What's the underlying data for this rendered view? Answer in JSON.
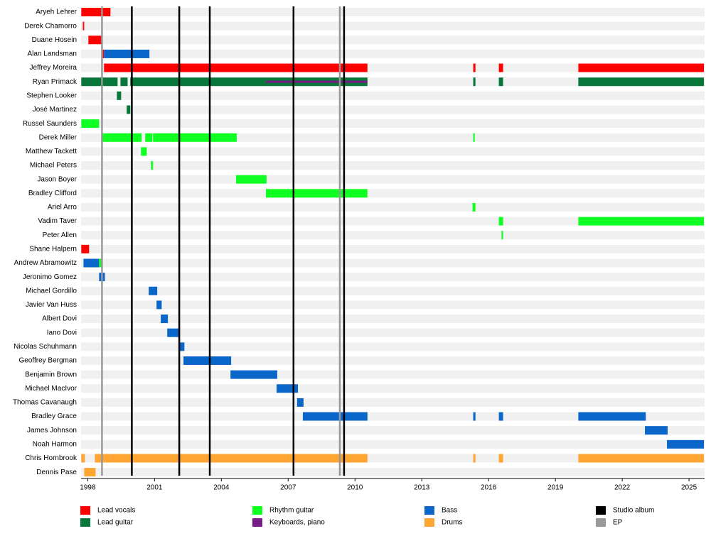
{
  "chart_data": {
    "type": "timeline",
    "xlim": [
      1997.7,
      2025.7
    ],
    "xticks": [
      1998,
      2001,
      2004,
      2007,
      2010,
      2013,
      2016,
      2019,
      2022,
      2025
    ],
    "roles": [
      {
        "name": "Lead vocals",
        "color": "#ff0000"
      },
      {
        "name": "Lead guitar",
        "color": "#08783a"
      },
      {
        "name": "Rhythm guitar",
        "color": "#10ff22"
      },
      {
        "name": "Keyboards, piano",
        "color": "#781a88"
      },
      {
        "name": "Bass",
        "color": "#0a66c8"
      },
      {
        "name": "Drums",
        "color": "#ffa531"
      },
      {
        "name": "Studio album",
        "color": "#000000"
      },
      {
        "name": "EP",
        "color": "#999999"
      }
    ],
    "events": [
      {
        "role": 7,
        "x": 1998.64
      },
      {
        "role": 6,
        "x": 1999.98
      },
      {
        "role": 6,
        "x": 2002.11
      },
      {
        "role": 6,
        "x": 2003.48
      },
      {
        "role": 6,
        "x": 2007.24
      },
      {
        "role": 7,
        "x": 2009.32
      },
      {
        "role": 6,
        "x": 2009.51
      }
    ],
    "members": [
      {
        "name": "Aryeh Lehrer",
        "bars": [
          {
            "role": 0,
            "start": 1997.71,
            "end": 1999.02
          }
        ]
      },
      {
        "name": "Derek Chamorro",
        "bars": [
          {
            "role": 0,
            "start": 1997.78,
            "end": 1997.84
          }
        ]
      },
      {
        "name": "Duane Hosein",
        "bars": [
          {
            "role": 0,
            "start": 1998.03,
            "end": 1998.67
          }
        ]
      },
      {
        "name": "Alan Landsman",
        "bars": [
          {
            "role": 0,
            "start": 1998.64,
            "end": 1998.73
          },
          {
            "role": 4,
            "start": 1998.73,
            "end": 2000.77
          }
        ]
      },
      {
        "name": "Jeffrey Moreira",
        "bars": [
          {
            "role": 0,
            "start": 1998.73,
            "end": 2010.56
          },
          {
            "role": 0,
            "start": 2015.31,
            "end": 2015.41
          },
          {
            "role": 0,
            "start": 2016.46,
            "end": 2016.65
          },
          {
            "role": 0,
            "start": 2020.03,
            "end": 2025.67
          }
        ]
      },
      {
        "name": "Ryan Primack",
        "bars": [
          {
            "role": 1,
            "start": 1997.71,
            "end": 1999.34
          },
          {
            "role": 1,
            "start": 1999.47,
            "end": 1999.79
          },
          {
            "role": 1,
            "start": 1999.91,
            "end": 2010.56
          },
          {
            "role": 3,
            "start": 2006.0,
            "end": 2010.56
          },
          {
            "role": 1,
            "start": 2015.31,
            "end": 2015.41
          },
          {
            "role": 1,
            "start": 2016.46,
            "end": 2016.65
          },
          {
            "role": 1,
            "start": 2020.03,
            "end": 2025.67
          }
        ]
      },
      {
        "name": "Stephen Looker",
        "bars": [
          {
            "role": 1,
            "start": 1999.31,
            "end": 1999.5
          }
        ]
      },
      {
        "name": "José Martinez",
        "bars": [
          {
            "role": 1,
            "start": 1999.75,
            "end": 1999.91
          }
        ]
      },
      {
        "name": "Russel Saunders",
        "bars": [
          {
            "role": 2,
            "start": 1997.71,
            "end": 1998.51
          }
        ]
      },
      {
        "name": "Derek Miller",
        "bars": [
          {
            "role": 2,
            "start": 1998.64,
            "end": 2000.42
          },
          {
            "role": 2,
            "start": 2000.58,
            "end": 2000.9
          },
          {
            "role": 2,
            "start": 2000.93,
            "end": 2004.69
          },
          {
            "role": 2,
            "start": 2015.31,
            "end": 2015.38
          }
        ]
      },
      {
        "name": "Matthew Tackett",
        "bars": [
          {
            "role": 2,
            "start": 2000.39,
            "end": 2000.65
          }
        ]
      },
      {
        "name": "Michael Peters",
        "bars": [
          {
            "role": 2,
            "start": 2000.84,
            "end": 2000.93
          }
        ]
      },
      {
        "name": "Jason Boyer",
        "bars": [
          {
            "role": 2,
            "start": 2004.66,
            "end": 2006.03
          }
        ]
      },
      {
        "name": "Bradley Clifford",
        "bars": [
          {
            "role": 2,
            "start": 2006.0,
            "end": 2010.56
          }
        ]
      },
      {
        "name": "Ariel Arro",
        "bars": [
          {
            "role": 2,
            "start": 2015.28,
            "end": 2015.41
          }
        ]
      },
      {
        "name": "Vadim Taver",
        "bars": [
          {
            "role": 2,
            "start": 2016.46,
            "end": 2016.65
          },
          {
            "role": 2,
            "start": 2020.03,
            "end": 2025.67
          }
        ]
      },
      {
        "name": "Peter Allen",
        "bars": [
          {
            "role": 2,
            "start": 2016.58,
            "end": 2016.65
          }
        ]
      },
      {
        "name": "Shane Halpern",
        "bars": [
          {
            "role": 0,
            "start": 1997.71,
            "end": 1998.06
          }
        ]
      },
      {
        "name": "Andrew Abramowitz",
        "bars": [
          {
            "role": 4,
            "start": 1997.81,
            "end": 1998.51
          },
          {
            "role": 2,
            "start": 1998.51,
            "end": 1998.64
          }
        ]
      },
      {
        "name": "Jeronimo Gomez",
        "bars": [
          {
            "role": 4,
            "start": 1998.51,
            "end": 1998.77
          }
        ]
      },
      {
        "name": "Michael Gordillo",
        "bars": [
          {
            "role": 4,
            "start": 2000.74,
            "end": 2001.12
          }
        ]
      },
      {
        "name": "Javier Van Huss",
        "bars": [
          {
            "role": 4,
            "start": 2001.09,
            "end": 2001.32
          }
        ]
      },
      {
        "name": "Albert Dovi",
        "bars": [
          {
            "role": 4,
            "start": 2001.28,
            "end": 2001.6
          }
        ]
      },
      {
        "name": "Iano Dovi",
        "bars": [
          {
            "role": 4,
            "start": 2001.57,
            "end": 2002.11
          }
        ]
      },
      {
        "name": "Nicolas Schuhmann",
        "bars": [
          {
            "role": 4,
            "start": 2002.08,
            "end": 2002.34
          }
        ]
      },
      {
        "name": "Geoffrey Bergman",
        "bars": [
          {
            "role": 4,
            "start": 2002.3,
            "end": 2004.44
          }
        ]
      },
      {
        "name": "Benjamin Brown",
        "bars": [
          {
            "role": 4,
            "start": 2004.41,
            "end": 2006.51
          }
        ]
      },
      {
        "name": "Michael MacIvor",
        "bars": [
          {
            "role": 4,
            "start": 2006.48,
            "end": 2007.44
          }
        ]
      },
      {
        "name": "Thomas Cavanaugh",
        "bars": [
          {
            "role": 4,
            "start": 2007.4,
            "end": 2007.69
          }
        ]
      },
      {
        "name": "Bradley Grace",
        "bars": [
          {
            "role": 4,
            "start": 2007.66,
            "end": 2010.56
          },
          {
            "role": 4,
            "start": 2015.31,
            "end": 2015.41
          },
          {
            "role": 4,
            "start": 2016.46,
            "end": 2016.65
          },
          {
            "role": 4,
            "start": 2020.03,
            "end": 2023.06
          }
        ]
      },
      {
        "name": "James Johnson",
        "bars": [
          {
            "role": 4,
            "start": 2023.02,
            "end": 2024.04
          }
        ]
      },
      {
        "name": "Noah Harmon",
        "bars": [
          {
            "role": 4,
            "start": 2024.01,
            "end": 2025.67
          }
        ]
      },
      {
        "name": "Chris Hornbrook",
        "bars": [
          {
            "role": 5,
            "start": 1997.71,
            "end": 1997.87
          },
          {
            "role": 5,
            "start": 1998.32,
            "end": 2010.56
          },
          {
            "role": 5,
            "start": 2015.31,
            "end": 2015.41
          },
          {
            "role": 5,
            "start": 2016.46,
            "end": 2016.65
          },
          {
            "role": 5,
            "start": 2020.03,
            "end": 2025.67
          }
        ]
      },
      {
        "name": "Dennis Pase",
        "bars": [
          {
            "role": 5,
            "start": 1997.84,
            "end": 1998.35
          }
        ]
      }
    ]
  }
}
